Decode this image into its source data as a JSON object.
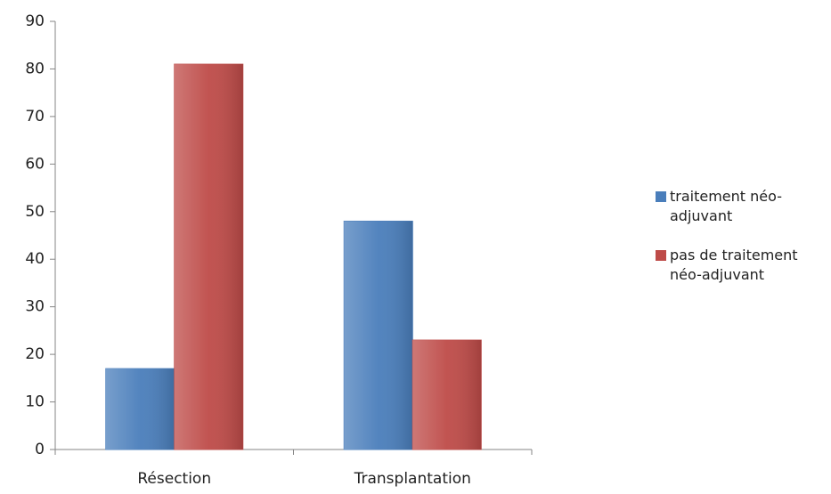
{
  "chart_data": {
    "type": "bar",
    "categories": [
      "Résection",
      "Transplantation"
    ],
    "series": [
      {
        "name": "traitement néo-adjuvant",
        "color": "#4a7ebb",
        "values": [
          17,
          48
        ]
      },
      {
        "name": "pas de traitement néo-adjuvant",
        "color": "#be4b48",
        "values": [
          81,
          23
        ]
      }
    ],
    "ylim": [
      0,
      90
    ],
    "yticks": [
      0,
      10,
      20,
      30,
      40,
      50,
      60,
      70,
      80,
      90
    ],
    "grid": false,
    "legend": "right"
  }
}
